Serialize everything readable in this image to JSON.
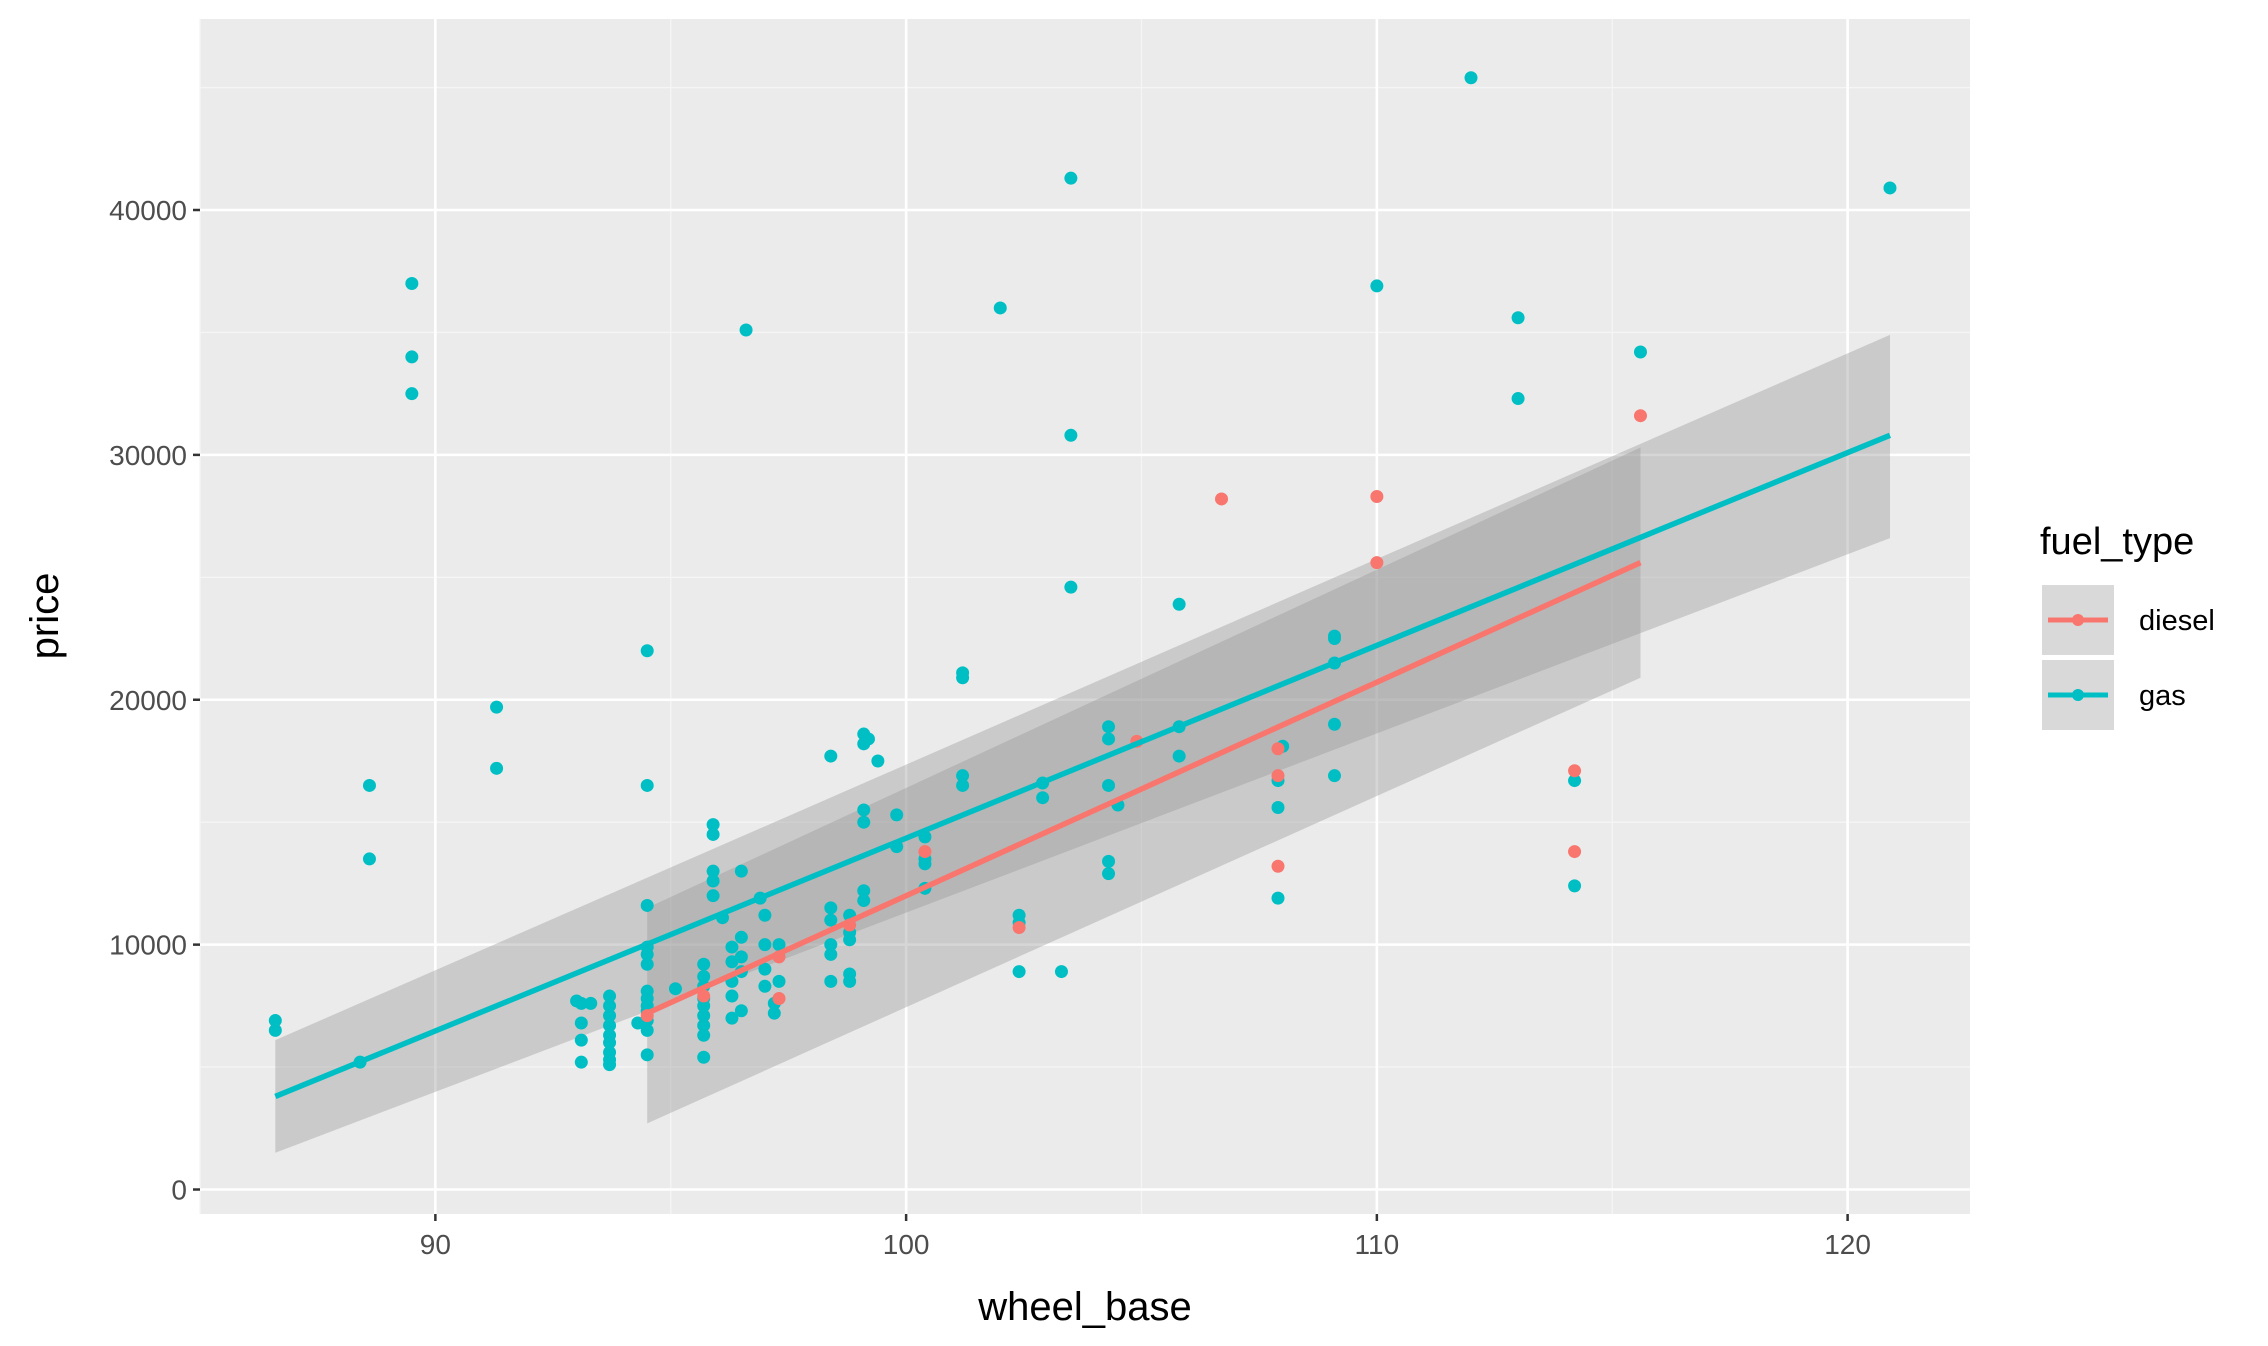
{
  "chart_data": {
    "type": "scatter",
    "xlabel": "wheel_base",
    "ylabel": "price",
    "xlim": [
      85,
      122.6
    ],
    "ylim": [
      -1000,
      47800
    ],
    "x_ticks": [
      90,
      100,
      110,
      120
    ],
    "y_ticks": [
      0,
      10000,
      20000,
      30000,
      40000
    ],
    "x_tick_labels": [
      "90",
      "100",
      "110",
      "120"
    ],
    "y_tick_labels": [
      "0",
      "10000",
      "20000",
      "30000",
      "40000"
    ],
    "grid": true,
    "legend": {
      "title": "fuel_type",
      "placement": "right",
      "entries": [
        "diesel",
        "gas"
      ]
    },
    "series": [
      {
        "name": "diesel",
        "color": "#F8766D",
        "points": [
          [
            94.5,
            7100
          ],
          [
            95.7,
            7900
          ],
          [
            97.3,
            7800
          ],
          [
            97.3,
            9500
          ],
          [
            98.8,
            10800
          ],
          [
            100.4,
            13800
          ],
          [
            102.4,
            10700
          ],
          [
            104.9,
            18300
          ],
          [
            106.7,
            28200
          ],
          [
            107.9,
            18000
          ],
          [
            107.9,
            16900
          ],
          [
            107.9,
            13200
          ],
          [
            110.0,
            28300
          ],
          [
            110.0,
            25600
          ],
          [
            114.2,
            17100
          ],
          [
            114.2,
            13800
          ],
          [
            115.6,
            31600
          ]
        ],
        "fit": {
          "x": [
            94.5,
            115.6
          ],
          "y": [
            7200,
            25600
          ],
          "lower": [
            2700,
            20900
          ],
          "upper": [
            11500,
            30300
          ]
        }
      },
      {
        "name": "gas",
        "color": "#00BFC4",
        "points": [
          [
            86.6,
            6900
          ],
          [
            86.6,
            6500
          ],
          [
            88.4,
            5200
          ],
          [
            88.6,
            16500
          ],
          [
            88.6,
            13500
          ],
          [
            89.5,
            37000
          ],
          [
            89.5,
            34000
          ],
          [
            89.5,
            32500
          ],
          [
            91.3,
            19700
          ],
          [
            91.3,
            17200
          ],
          [
            93.0,
            7700
          ],
          [
            93.1,
            7600
          ],
          [
            93.1,
            6800
          ],
          [
            93.1,
            6100
          ],
          [
            93.1,
            5200
          ],
          [
            93.3,
            7600
          ],
          [
            93.7,
            7900
          ],
          [
            93.7,
            7500
          ],
          [
            93.7,
            7100
          ],
          [
            93.7,
            6700
          ],
          [
            93.7,
            6300
          ],
          [
            93.7,
            6000
          ],
          [
            93.7,
            5600
          ],
          [
            93.7,
            5300
          ],
          [
            93.7,
            5100
          ],
          [
            94.3,
            6800
          ],
          [
            94.5,
            22000
          ],
          [
            94.5,
            16500
          ],
          [
            94.5,
            11600
          ],
          [
            94.5,
            9900
          ],
          [
            94.5,
            9600
          ],
          [
            94.5,
            9200
          ],
          [
            94.5,
            8100
          ],
          [
            94.5,
            7800
          ],
          [
            94.5,
            7500
          ],
          [
            94.5,
            7300
          ],
          [
            94.5,
            6900
          ],
          [
            94.5,
            6500
          ],
          [
            94.5,
            5500
          ],
          [
            95.1,
            8200
          ],
          [
            95.7,
            9200
          ],
          [
            95.7,
            8700
          ],
          [
            95.7,
            8300
          ],
          [
            95.7,
            7800
          ],
          [
            95.7,
            7500
          ],
          [
            95.7,
            7100
          ],
          [
            95.7,
            6700
          ],
          [
            95.7,
            6300
          ],
          [
            95.7,
            5400
          ],
          [
            95.9,
            14900
          ],
          [
            95.9,
            14500
          ],
          [
            95.9,
            13000
          ],
          [
            95.9,
            12600
          ],
          [
            95.9,
            12000
          ],
          [
            96.1,
            11100
          ],
          [
            96.3,
            9900
          ],
          [
            96.3,
            9300
          ],
          [
            96.3,
            8500
          ],
          [
            96.3,
            7900
          ],
          [
            96.3,
            7000
          ],
          [
            96.5,
            13000
          ],
          [
            96.5,
            10300
          ],
          [
            96.5,
            9500
          ],
          [
            96.5,
            8900
          ],
          [
            96.5,
            7300
          ],
          [
            96.6,
            35100
          ],
          [
            96.9,
            11900
          ],
          [
            97.0,
            11200
          ],
          [
            97.0,
            10000
          ],
          [
            97.0,
            9000
          ],
          [
            97.0,
            8300
          ],
          [
            97.2,
            7600
          ],
          [
            97.2,
            7200
          ],
          [
            97.3,
            10000
          ],
          [
            97.3,
            8500
          ],
          [
            98.4,
            17700
          ],
          [
            98.4,
            11500
          ],
          [
            98.4,
            11000
          ],
          [
            98.4,
            10000
          ],
          [
            98.4,
            9600
          ],
          [
            98.4,
            8500
          ],
          [
            98.8,
            11200
          ],
          [
            98.8,
            10500
          ],
          [
            98.8,
            10200
          ],
          [
            98.8,
            8800
          ],
          [
            98.8,
            8500
          ],
          [
            99.1,
            18600
          ],
          [
            99.1,
            18200
          ],
          [
            99.1,
            15500
          ],
          [
            99.1,
            15000
          ],
          [
            99.1,
            12200
          ],
          [
            99.1,
            11800
          ],
          [
            99.2,
            18400
          ],
          [
            99.4,
            17500
          ],
          [
            99.8,
            15300
          ],
          [
            99.8,
            14000
          ],
          [
            100.4,
            14400
          ],
          [
            100.4,
            13500
          ],
          [
            100.4,
            13300
          ],
          [
            100.4,
            12300
          ],
          [
            101.2,
            21100
          ],
          [
            101.2,
            20900
          ],
          [
            101.2,
            16900
          ],
          [
            101.2,
            16500
          ],
          [
            102.0,
            36000
          ],
          [
            102.4,
            11200
          ],
          [
            102.4,
            10900
          ],
          [
            102.4,
            8900
          ],
          [
            102.9,
            16600
          ],
          [
            102.9,
            16000
          ],
          [
            103.3,
            8900
          ],
          [
            103.5,
            41300
          ],
          [
            103.5,
            30800
          ],
          [
            103.5,
            24600
          ],
          [
            104.3,
            18900
          ],
          [
            104.3,
            18400
          ],
          [
            104.3,
            16500
          ],
          [
            104.3,
            13400
          ],
          [
            104.3,
            12900
          ],
          [
            104.5,
            15700
          ],
          [
            105.8,
            23900
          ],
          [
            105.8,
            18900
          ],
          [
            105.8,
            17700
          ],
          [
            108.0,
            18100
          ],
          [
            107.9,
            16700
          ],
          [
            107.9,
            15600
          ],
          [
            107.9,
            11900
          ],
          [
            109.1,
            22600
          ],
          [
            109.1,
            22500
          ],
          [
            109.1,
            21500
          ],
          [
            109.1,
            19000
          ],
          [
            109.1,
            16900
          ],
          [
            110.0,
            36900
          ],
          [
            112.0,
            45400
          ],
          [
            113.0,
            35600
          ],
          [
            113.0,
            32300
          ],
          [
            114.2,
            16700
          ],
          [
            114.2,
            12400
          ],
          [
            115.6,
            34200
          ],
          [
            120.9,
            40900
          ]
        ],
        "fit": {
          "x": [
            86.6,
            120.9
          ],
          "y": [
            3800,
            30800
          ],
          "lower": [
            1500,
            26600
          ],
          "upper": [
            6100,
            34900
          ]
        }
      }
    ]
  }
}
